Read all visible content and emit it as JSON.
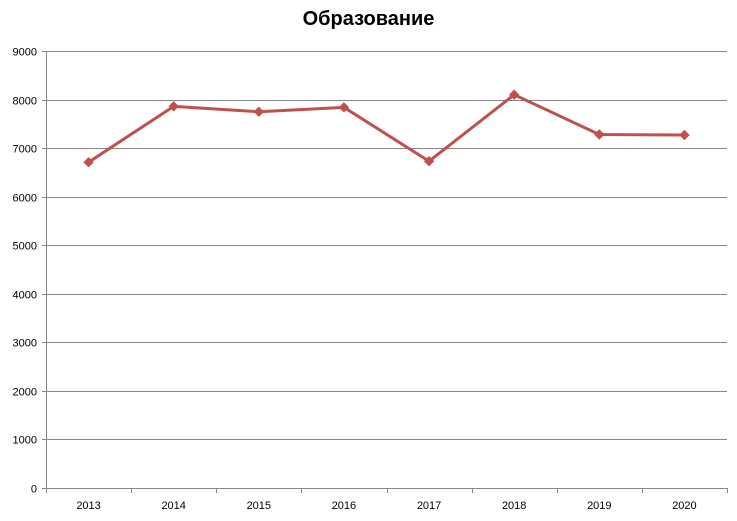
{
  "chart_data": {
    "type": "line",
    "title": "Образование",
    "xlabel": "",
    "ylabel": "",
    "categories": [
      "2013",
      "2014",
      "2015",
      "2016",
      "2017",
      "2018",
      "2019",
      "2020"
    ],
    "series": [
      {
        "values": [
          6710,
          7860,
          7750,
          7840,
          6730,
          8100,
          7280,
          7270
        ],
        "color": "#c0504d",
        "marker": "diamond"
      }
    ],
    "ylim": [
      0,
      9000
    ],
    "yticks": [
      "0",
      "1000",
      "2000",
      "3000",
      "4000",
      "5000",
      "6000",
      "7000",
      "8000",
      "9000"
    ],
    "grid": true,
    "legend": "none",
    "colors": {
      "gridline": "#868686",
      "axis": "#868686",
      "line": "#c0504d"
    }
  }
}
